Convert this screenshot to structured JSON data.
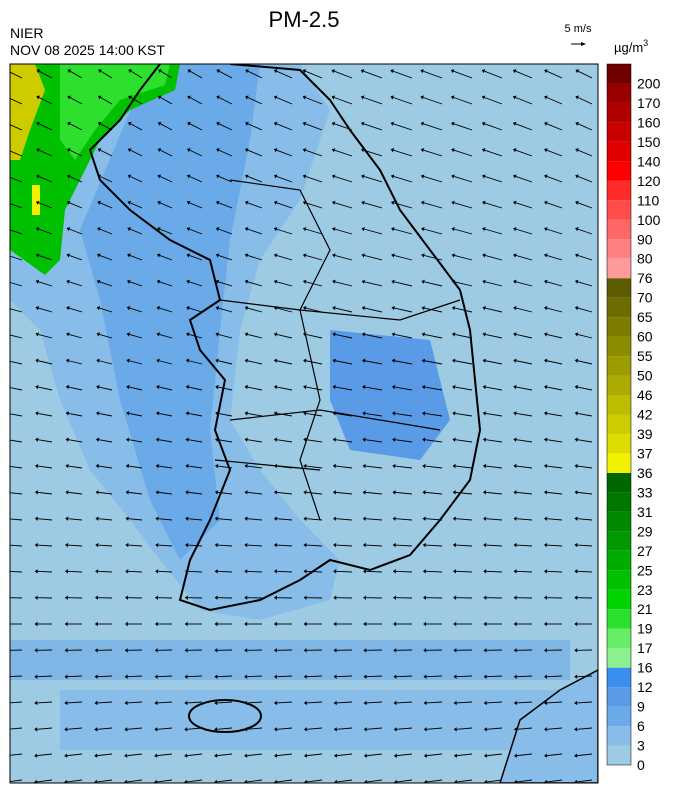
{
  "header": {
    "title": "PM-2.5",
    "agency": "NIER",
    "timestamp": "NOV 08 2025 14:00 KST"
  },
  "wind_scale": {
    "label": "5 m/s"
  },
  "colorbar": {
    "unit": "µg/m",
    "unit_superscript": "3",
    "labels": [
      0,
      3,
      6,
      9,
      12,
      16,
      17,
      19,
      21,
      23,
      25,
      27,
      29,
      31,
      33,
      36,
      37,
      39,
      42,
      46,
      50,
      55,
      60,
      65,
      70,
      76,
      80,
      90,
      100,
      110,
      120,
      140,
      150,
      160,
      170,
      200
    ],
    "colors": [
      "#9dcbe4",
      "#87bde8",
      "#6aaae8",
      "#5a9be8",
      "#3a8ef0",
      "#8cf08c",
      "#66ee66",
      "#2ee02e",
      "#00d400",
      "#00c000",
      "#00ac00",
      "#009a00",
      "#008800",
      "#007800",
      "#006600",
      "#f0f000",
      "#dcdc00",
      "#cccc00",
      "#bcbc00",
      "#aaaa00",
      "#9c9c00",
      "#8c8c00",
      "#7c7c00",
      "#6c6c00",
      "#5c5c00",
      "#ff9a9a",
      "#ff8080",
      "#ff6666",
      "#ff4c4c",
      "#ff2a2a",
      "#ff0000",
      "#e00000",
      "#c80000",
      "#b00000",
      "#980000",
      "#700000"
    ]
  }
}
